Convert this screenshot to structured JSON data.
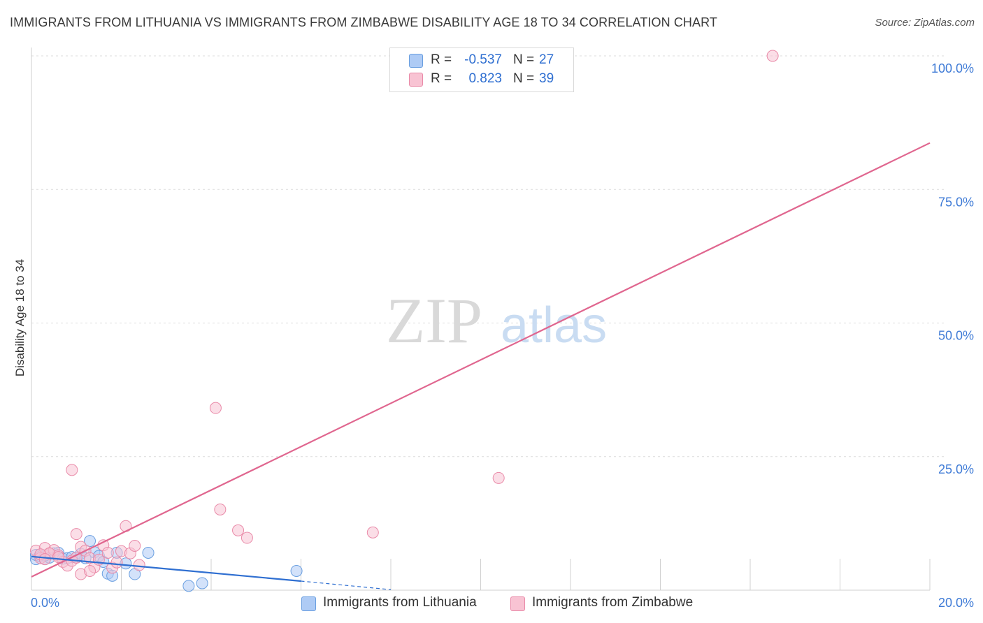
{
  "header": {
    "title": "IMMIGRANTS FROM LITHUANIA VS IMMIGRANTS FROM ZIMBABWE DISABILITY AGE 18 TO 34 CORRELATION CHART",
    "source": "Source: ZipAtlas.com"
  },
  "watermark": {
    "zip": "ZIP",
    "atlas": "atlas"
  },
  "legend": {
    "rows": [
      {
        "r_label": "R =",
        "r_value": "-0.537",
        "n_label": "N =",
        "n_value": "27",
        "color": "#aecbf5",
        "border": "#6a9fe0"
      },
      {
        "r_label": "R =",
        "r_value": "0.823",
        "n_label": "N =",
        "n_value": "39",
        "color": "#f8c3d3",
        "border": "#e98aa8"
      }
    ]
  },
  "bottom_legend": {
    "items": [
      {
        "label": "Immigrants from Lithuania",
        "color": "#aecbf5",
        "border": "#6a9fe0"
      },
      {
        "label": "Immigrants from Zimbabwe",
        "color": "#f8c3d3",
        "border": "#e98aa8"
      }
    ]
  },
  "chart_data": {
    "type": "scatter",
    "title": "IMMIGRANTS FROM LITHUANIA VS IMMIGRANTS FROM ZIMBABWE DISABILITY AGE 18 TO 34 CORRELATION CHART",
    "xlabel": "",
    "ylabel": "Disability Age 18 to 34",
    "xlim": [
      0,
      20
    ],
    "ylim": [
      0,
      100
    ],
    "x_tick_labels": [
      "0.0%",
      "20.0%"
    ],
    "y_tick_labels": [
      "25.0%",
      "50.0%",
      "75.0%",
      "100.0%"
    ],
    "y_ticks": [
      25,
      50,
      75,
      100
    ],
    "grid": true,
    "series": [
      {
        "name": "Immigrants from Lithuania",
        "color": "#6a9fe0",
        "fill": "#aecbf5",
        "line_color": "#2f6fd1",
        "trend": {
          "x": [
            0,
            6.0
          ],
          "y": [
            6.3,
            1.7
          ]
        },
        "trend_dashed": {
          "x": [
            6.0,
            8.0
          ],
          "y": [
            1.7,
            0.1
          ]
        },
        "points": [
          [
            0.1,
            5.8
          ],
          [
            0.1,
            6.6
          ],
          [
            0.2,
            6.3
          ],
          [
            0.3,
            5.8
          ],
          [
            0.4,
            6.1
          ],
          [
            0.5,
            6.9
          ],
          [
            0.6,
            7.0
          ],
          [
            0.7,
            5.9
          ],
          [
            0.8,
            6.0
          ],
          [
            0.9,
            6.2
          ],
          [
            1.0,
            6.1
          ],
          [
            1.1,
            6.8
          ],
          [
            1.3,
            9.2
          ],
          [
            1.4,
            7.1
          ],
          [
            1.5,
            6.4
          ],
          [
            1.6,
            5.3
          ],
          [
            1.7,
            3.1
          ],
          [
            1.8,
            2.7
          ],
          [
            1.9,
            7.0
          ],
          [
            2.1,
            5.0
          ],
          [
            2.3,
            3.0
          ],
          [
            2.6,
            7.0
          ],
          [
            3.5,
            0.8
          ],
          [
            3.8,
            1.3
          ],
          [
            5.9,
            3.6
          ],
          [
            1.2,
            6.0
          ],
          [
            0.3,
            6.5
          ]
        ]
      },
      {
        "name": "Immigrants from Zimbabwe",
        "color": "#e98aa8",
        "fill": "#f8c3d3",
        "line_color": "#e0668f",
        "trend": {
          "x": [
            0,
            20
          ],
          "y": [
            2.5,
            83.7
          ]
        },
        "points": [
          [
            0.1,
            7.4
          ],
          [
            0.2,
            6.0
          ],
          [
            0.3,
            7.9
          ],
          [
            0.4,
            6.8
          ],
          [
            0.5,
            7.5
          ],
          [
            0.6,
            6.5
          ],
          [
            0.7,
            5.3
          ],
          [
            0.8,
            4.6
          ],
          [
            0.9,
            5.5
          ],
          [
            1.0,
            6.1
          ],
          [
            1.1,
            8.1
          ],
          [
            1.2,
            7.4
          ],
          [
            1.3,
            6.0
          ],
          [
            1.4,
            4.3
          ],
          [
            1.5,
            5.7
          ],
          [
            1.6,
            8.4
          ],
          [
            1.7,
            7.0
          ],
          [
            1.8,
            4.2
          ],
          [
            1.9,
            5.2
          ],
          [
            2.0,
            7.3
          ],
          [
            2.1,
            12.0
          ],
          [
            2.2,
            6.9
          ],
          [
            2.3,
            8.3
          ],
          [
            2.4,
            4.7
          ],
          [
            0.9,
            22.5
          ],
          [
            4.1,
            34.1
          ],
          [
            4.2,
            15.1
          ],
          [
            4.6,
            11.2
          ],
          [
            4.8,
            9.8
          ],
          [
            7.6,
            10.8
          ],
          [
            10.4,
            21.0
          ],
          [
            16.5,
            100.0
          ],
          [
            0.4,
            6.9
          ],
          [
            0.6,
            6.2
          ],
          [
            1.0,
            10.5
          ],
          [
            1.1,
            3.0
          ],
          [
            1.3,
            3.6
          ],
          [
            0.2,
            6.7
          ],
          [
            0.3,
            5.8
          ]
        ]
      }
    ]
  }
}
